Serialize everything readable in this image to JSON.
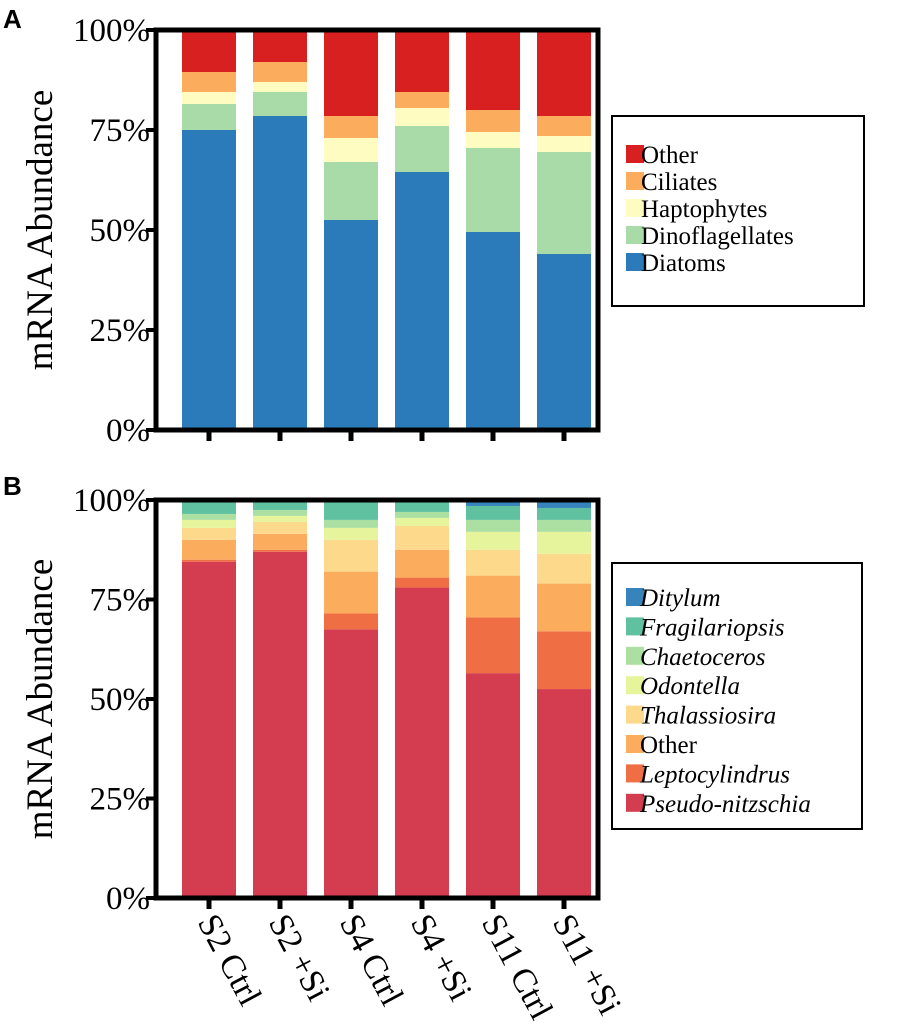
{
  "chart_data": [
    {
      "panel": "A",
      "type": "bar",
      "stacked": true,
      "ylabel": "mRNA Abundance",
      "ylim": [
        0,
        100
      ],
      "yticks": [
        "0%",
        "25%",
        "50%",
        "75%",
        "100%"
      ],
      "categories": [
        "S2 Ctrl",
        "S2 +Si",
        "S4 Ctrl",
        "S4 +Si",
        "S11 Ctrl",
        "S11 +Si"
      ],
      "series": [
        {
          "name": "Diatoms",
          "color": "#2b7bba",
          "values": [
            75,
            78.5,
            52.5,
            64.5,
            49.5,
            44
          ]
        },
        {
          "name": "Dinoflagellates",
          "color": "#a8dba7",
          "values": [
            6.5,
            6,
            14.5,
            11.5,
            21,
            25.5
          ]
        },
        {
          "name": "Haptophytes",
          "color": "#fefcc0",
          "values": [
            3,
            2.5,
            6,
            4.5,
            4,
            4
          ]
        },
        {
          "name": "Ciliates",
          "color": "#fbad5d",
          "values": [
            5,
            5,
            5.5,
            4,
            5.5,
            5
          ]
        },
        {
          "name": "Other",
          "color": "#d7201f",
          "values": [
            10.5,
            8,
            21.5,
            15.5,
            20,
            21.5
          ]
        }
      ],
      "legend_order": [
        "Other",
        "Ciliates",
        "Haptophytes",
        "Dinoflagellates",
        "Diatoms"
      ],
      "legend_position": "right"
    },
    {
      "panel": "B",
      "type": "bar",
      "stacked": true,
      "ylabel": "mRNA Abundance",
      "ylim": [
        0,
        100
      ],
      "yticks": [
        "0%",
        "25%",
        "50%",
        "75%",
        "100%"
      ],
      "categories": [
        "S2 Ctrl",
        "S2 +Si",
        "S4 Ctrl",
        "S4 +Si",
        "S11 Ctrl",
        "S11 +Si"
      ],
      "series": [
        {
          "name": "Pseudo-nitzschia",
          "italic": true,
          "color": "#d43d4f",
          "values": [
            84.5,
            87,
            67.5,
            78,
            56.5,
            52.5
          ]
        },
        {
          "name": "Leptocylindrus",
          "italic": true,
          "color": "#f06e44",
          "values": [
            0.5,
            0.5,
            4,
            2.5,
            14,
            14.5
          ]
        },
        {
          "name": "Other",
          "italic": false,
          "color": "#fbad5d",
          "values": [
            5,
            4,
            10.5,
            7,
            10.5,
            12
          ]
        },
        {
          "name": "Thalassiosira",
          "italic": true,
          "color": "#fdd98b",
          "values": [
            3,
            3,
            8,
            6,
            6.5,
            7.5
          ]
        },
        {
          "name": "Odontella",
          "italic": true,
          "color": "#e6f49c",
          "values": [
            2,
            1.5,
            3,
            2,
            4.5,
            5.5
          ]
        },
        {
          "name": "Chaetoceros",
          "italic": true,
          "color": "#ace0a2",
          "values": [
            1.5,
            1.5,
            2,
            1.5,
            3,
            3
          ]
        },
        {
          "name": "Fragilariopsis",
          "italic": true,
          "color": "#5fc1a0",
          "values": [
            3,
            2.5,
            4.5,
            3,
            3.5,
            3
          ]
        },
        {
          "name": "Ditylum",
          "italic": true,
          "color": "#3684bb",
          "values": [
            0.5,
            0,
            0.5,
            0,
            1.5,
            2
          ]
        }
      ],
      "legend_order": [
        "Ditylum",
        "Fragilariopsis",
        "Chaetoceros",
        "Odontella",
        "Thalassiosira",
        "Other",
        "Leptocylindrus",
        "Pseudo-nitzschia"
      ],
      "legend_position": "right"
    }
  ]
}
